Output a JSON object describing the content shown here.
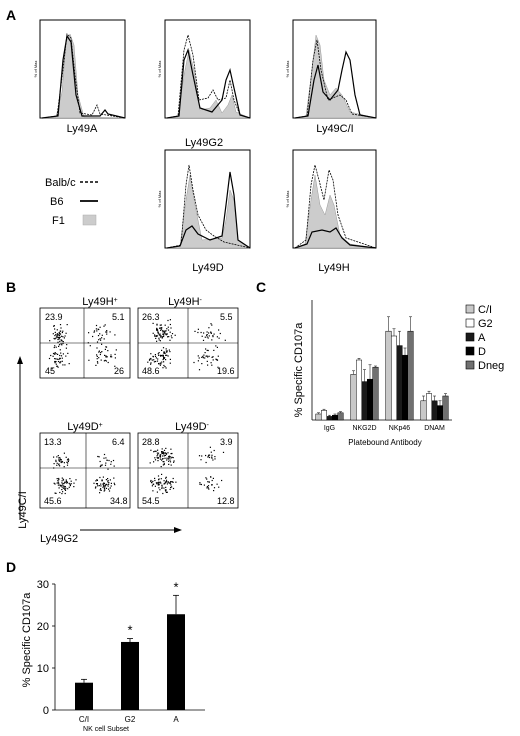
{
  "panels": {
    "A": {
      "letter": "A",
      "y_unit": "% of Max",
      "histograms": [
        {
          "label": "Ly49A"
        },
        {
          "label": "Ly49G2"
        },
        {
          "label": "Ly49C/I"
        },
        {
          "label": "Ly49D"
        },
        {
          "label": "Ly49H"
        }
      ],
      "legend": [
        {
          "label": "Balb/c",
          "style": "dashed"
        },
        {
          "label": "B6",
          "style": "solid"
        },
        {
          "label": "F1",
          "style": "filled-gray"
        }
      ]
    },
    "B": {
      "letter": "B",
      "ylabel": "Ly49C/I",
      "xlabel": "Ly49G2",
      "plots": [
        {
          "title": "Ly49H",
          "sup": "+",
          "q": [
            "23.9",
            "5.1",
            "45",
            "26"
          ]
        },
        {
          "title": "Ly49H",
          "sup": "-",
          "q": [
            "26.3",
            "5.5",
            "48.6",
            "19.6"
          ]
        },
        {
          "title": "Ly49D",
          "sup": "+",
          "q": [
            "13.3",
            "6.4",
            "45.6",
            "34.8"
          ]
        },
        {
          "title": "Ly49D",
          "sup": "-",
          "q": [
            "28.8",
            "3.9",
            "54.5",
            "12.8"
          ]
        }
      ]
    },
    "C": {
      "letter": "C",
      "ylabel": "% Specific CD107a",
      "xlabel": "Platebound Antibody",
      "legend_title": ""
    },
    "D": {
      "letter": "D",
      "ylabel": "% Specific CD107a",
      "xlabel": "NK cell Subset",
      "sig_marker": "*"
    }
  },
  "colors": {
    "C/I": "#c8c8c8",
    "G2": "#ffffff",
    "A": "#1a1a1a",
    "D": "#000000",
    "Dneg": "#707070",
    "F1": "#cccccc"
  },
  "chart_data": [
    {
      "type": "bar",
      "panel": "C",
      "categories": [
        "IgG",
        "NKG2D",
        "NKp46",
        "DNAM"
      ],
      "series": [
        {
          "name": "C/I",
          "values": [
            2.5,
            19,
            37,
            8
          ],
          "errors": [
            0.5,
            1.5,
            6,
            2
          ]
        },
        {
          "name": "G2",
          "values": [
            4,
            25,
            35,
            11
          ],
          "errors": [
            0.5,
            0.7,
            3,
            1
          ]
        },
        {
          "name": "A",
          "values": [
            1.5,
            16,
            31,
            8
          ],
          "errors": [
            0.5,
            5,
            6,
            2
          ]
        },
        {
          "name": "D",
          "values": [
            2,
            17,
            27,
            6
          ],
          "errors": [
            0.5,
            6,
            3,
            2
          ]
        },
        {
          "name": "Dneg",
          "values": [
            3,
            22,
            37,
            10
          ],
          "errors": [
            0.5,
            0.5,
            6,
            1
          ]
        }
      ],
      "ylim": [
        0,
        50
      ],
      "yticks": [],
      "xlabel": "Platebound Antibody",
      "ylabel": "% Specific CD107a",
      "legend_position": "right"
    },
    {
      "type": "bar",
      "panel": "D",
      "categories": [
        "C/I",
        "G2",
        "A"
      ],
      "values": [
        6.5,
        16.2,
        22.8
      ],
      "errors": [
        0.8,
        0.8,
        4.5
      ],
      "significant": [
        false,
        true,
        true
      ],
      "ylim": [
        0,
        30
      ],
      "yticks": [
        0,
        10,
        20,
        30
      ],
      "xlabel": "NK cell Subset",
      "ylabel": "% Specific CD107a"
    }
  ]
}
